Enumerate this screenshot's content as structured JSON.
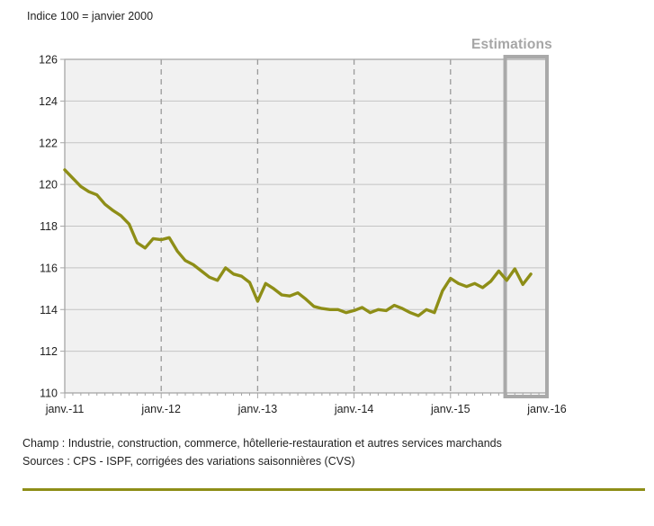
{
  "page": {
    "subtitle": "Indice 100 = janvier 2000",
    "estimations_label": "Estimations",
    "champ": "Champ : Industrie, construction, commerce, hôtellerie-restauration et autres services marchands",
    "sources": "Sources : CPS - ISPF, corrigées des variations saisonnières (CVS)"
  },
  "colors": {
    "accent": "#8e8e17",
    "plot_bg": "#f1f1f1",
    "gridline": "#c4c4c4",
    "year_line": "#9a9a9a",
    "border": "#a6a6a6",
    "estimation_box": "#a9a9a9",
    "estimations_text": "#a6a6a6",
    "text": "#1f1f1f"
  },
  "chart_data": {
    "type": "line",
    "title": "Indice 100 = janvier 2000",
    "xlabel": "",
    "ylabel": "",
    "ylim": [
      110,
      126
    ],
    "ytick_step": 2,
    "months_total": 60,
    "x_tick_months": [
      0,
      12,
      24,
      36,
      48,
      60
    ],
    "x_tick_labels": [
      "janv.-11",
      "janv.-12",
      "janv.-13",
      "janv.-14",
      "janv.-15",
      "janv.-16"
    ],
    "grid": "horizontal-solid, vertical-dashed-at-year-boundaries",
    "legend": "none",
    "series": [
      {
        "color": "#8e8e17",
        "start": "janv.-11",
        "end": "nov.-15",
        "frequency": "monthly",
        "values": [
          120.7,
          120.3,
          119.9,
          119.65,
          119.5,
          119.05,
          118.75,
          118.5,
          118.1,
          117.2,
          116.95,
          117.4,
          117.35,
          117.45,
          116.8,
          116.35,
          116.15,
          115.85,
          115.55,
          115.4,
          116.0,
          115.7,
          115.6,
          115.3,
          114.4,
          115.25,
          115.0,
          114.7,
          114.65,
          114.8,
          114.5,
          114.15,
          114.05,
          114.0,
          114.0,
          113.85,
          113.95,
          114.1,
          113.85,
          114.0,
          113.95,
          114.2,
          114.05,
          113.85,
          113.7,
          114.0,
          113.85,
          114.9,
          115.5,
          115.25,
          115.1,
          115.25,
          115.05,
          115.35,
          115.85,
          115.4,
          115.95,
          115.2,
          115.7
        ]
      }
    ],
    "annotation": {
      "label": "Estimations",
      "start_month": 54.8,
      "end_month": 60
    }
  }
}
